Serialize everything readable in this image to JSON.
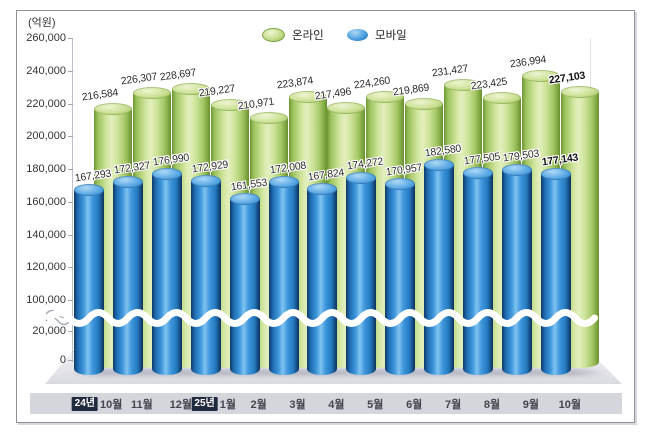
{
  "unit_label": "(억원)",
  "legend": [
    {
      "label": "온라인",
      "color": "#9CC25C"
    },
    {
      "label": "모바일",
      "color": "#2E86CC"
    }
  ],
  "x_axis": {
    "year_badges": [
      {
        "index": 0,
        "label": "24년"
      },
      {
        "index": 3,
        "label": "25년"
      }
    ]
  },
  "chart_data": {
    "type": "bar",
    "title": "",
    "xlabel": "",
    "ylabel": "(억원)",
    "categories": [
      "10월",
      "11월",
      "12월",
      "1월",
      "2월",
      "3월",
      "4월",
      "5월",
      "6월",
      "7월",
      "8월",
      "9월",
      "10월"
    ],
    "series": [
      {
        "name": "온라인",
        "color": "#9CC25C",
        "values": [
          216584,
          226307,
          228697,
          219227,
          210971,
          223874,
          217496,
          224260,
          219869,
          231427,
          223425,
          236994,
          227103
        ]
      },
      {
        "name": "모바일",
        "color": "#2E86CC",
        "values": [
          167293,
          172327,
          176990,
          172929,
          161553,
          172008,
          167824,
          174272,
          170957,
          182580,
          177505,
          179503,
          177143
        ]
      }
    ],
    "y_axis": {
      "tick_values": [
        260000,
        240000,
        220000,
        200000,
        180000,
        160000,
        140000,
        120000,
        100000,
        20000,
        0
      ],
      "tick_labels": [
        "260,000",
        "240,000",
        "220,000",
        "200,000",
        "180,000",
        "160,000",
        "140,000",
        "120,000",
        "100,000",
        "20,000",
        "0"
      ],
      "axis_break": {
        "from": 20000,
        "to": 100000
      }
    },
    "grid": false,
    "legend_position": "top-center",
    "last_point_bold": true
  }
}
